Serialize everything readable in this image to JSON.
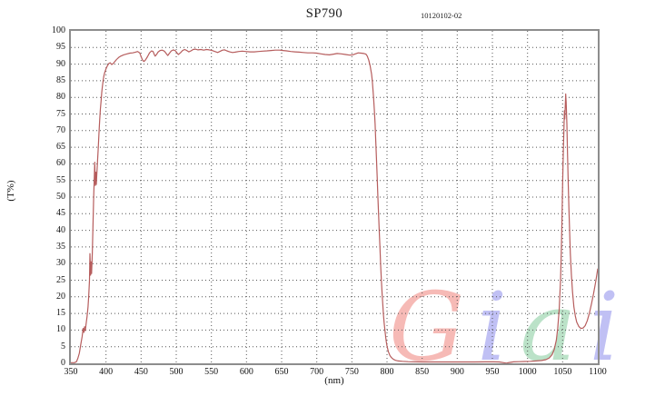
{
  "header": {
    "title": "SP790",
    "doc_number": "10120102-02"
  },
  "chart_data": {
    "type": "line",
    "title": "SP790",
    "xlabel": "(nm)",
    "ylabel": "(T%)",
    "xlim": [
      350,
      1100
    ],
    "ylim": [
      0,
      100
    ],
    "x_ticks": [
      350,
      400,
      450,
      500,
      550,
      600,
      650,
      700,
      750,
      800,
      850,
      900,
      950,
      1000,
      1050,
      1100
    ],
    "y_ticks": [
      0,
      5,
      10,
      15,
      20,
      25,
      30,
      35,
      40,
      45,
      50,
      55,
      60,
      65,
      70,
      75,
      80,
      85,
      90,
      95,
      100
    ],
    "grid": "dotted",
    "grid_color": "#555555",
    "frame_color": "#8d8d8d",
    "legend": "none",
    "series": [
      {
        "name": "SP790 transmission",
        "color": "#b65d5d",
        "points": [
          [
            350,
            0.2
          ],
          [
            355,
            0.2
          ],
          [
            358,
            0.5
          ],
          [
            360,
            1.5
          ],
          [
            362,
            3
          ],
          [
            364,
            5.5
          ],
          [
            366,
            8
          ],
          [
            367.5,
            10.5
          ],
          [
            368.5,
            9.3
          ],
          [
            369.5,
            11
          ],
          [
            370.5,
            9.8
          ],
          [
            371.5,
            11.5
          ],
          [
            373,
            14
          ],
          [
            374.5,
            17
          ],
          [
            375.5,
            20.5
          ],
          [
            376.5,
            25
          ],
          [
            377.2,
            33
          ],
          [
            378,
            26.5
          ],
          [
            378.8,
            30.5
          ],
          [
            379.5,
            27
          ],
          [
            380.5,
            33
          ],
          [
            381.5,
            42
          ],
          [
            382.5,
            50
          ],
          [
            383.2,
            55
          ],
          [
            384,
            60.5
          ],
          [
            384.8,
            53.5
          ],
          [
            385.5,
            57.5
          ],
          [
            386.2,
            53.8
          ],
          [
            387,
            57
          ],
          [
            388,
            61
          ],
          [
            389,
            65
          ],
          [
            390,
            69
          ],
          [
            391,
            73
          ],
          [
            392,
            76.5
          ],
          [
            393,
            79
          ],
          [
            394,
            81.5
          ],
          [
            395,
            83.5
          ],
          [
            396,
            85.2
          ],
          [
            397,
            86.4
          ],
          [
            398,
            87.3
          ],
          [
            400,
            88.6
          ],
          [
            402,
            89.5
          ],
          [
            404,
            90.2
          ],
          [
            406,
            90.4
          ],
          [
            408,
            89.9
          ],
          [
            410,
            90.1
          ],
          [
            412,
            90.6
          ],
          [
            415,
            91.4
          ],
          [
            418,
            92
          ],
          [
            421,
            92.4
          ],
          [
            425,
            92.8
          ],
          [
            430,
            93.1
          ],
          [
            434,
            93.3
          ],
          [
            438,
            93.4
          ],
          [
            442,
            93.6
          ],
          [
            445,
            93.8
          ],
          [
            448,
            93.4
          ],
          [
            450,
            92.3
          ],
          [
            452,
            91.2
          ],
          [
            454,
            90.8
          ],
          [
            456,
            91.2
          ],
          [
            459,
            92.2
          ],
          [
            462,
            93.4
          ],
          [
            465,
            94
          ],
          [
            467,
            93.8
          ],
          [
            469,
            92.8
          ],
          [
            470,
            92.4
          ],
          [
            472,
            92.9
          ],
          [
            474,
            93.6
          ],
          [
            477,
            94.1
          ],
          [
            480,
            94.2
          ],
          [
            483,
            93.9
          ],
          [
            486,
            93.1
          ],
          [
            488,
            92.6
          ],
          [
            490,
            93.2
          ],
          [
            493,
            94
          ],
          [
            496,
            94.3
          ],
          [
            499,
            94
          ],
          [
            501,
            93.4
          ],
          [
            503,
            92.9
          ],
          [
            506,
            93.4
          ],
          [
            509,
            94.1
          ],
          [
            512,
            94.4
          ],
          [
            515,
            94.1
          ],
          [
            518,
            93.7
          ],
          [
            521,
            94
          ],
          [
            524,
            94.4
          ],
          [
            527,
            94.5
          ],
          [
            531,
            94.3
          ],
          [
            535,
            94.4
          ],
          [
            539,
            94.2
          ],
          [
            543,
            94.4
          ],
          [
            547,
            94.3
          ],
          [
            551,
            94.1
          ],
          [
            555,
            93.8
          ],
          [
            559,
            93.5
          ],
          [
            562,
            93.8
          ],
          [
            566,
            94.2
          ],
          [
            569,
            94.3
          ],
          [
            572,
            94
          ],
          [
            576,
            93.7
          ],
          [
            580,
            93.5
          ],
          [
            584,
            93.6
          ],
          [
            589,
            93.8
          ],
          [
            594,
            93.9
          ],
          [
            599,
            93.8
          ],
          [
            605,
            93.7
          ],
          [
            611,
            93.7
          ],
          [
            617,
            93.8
          ],
          [
            623,
            93.9
          ],
          [
            629,
            94
          ],
          [
            635,
            94.1
          ],
          [
            641,
            94.2
          ],
          [
            647,
            94.2
          ],
          [
            652,
            94.1
          ],
          [
            657,
            94
          ],
          [
            663,
            93.8
          ],
          [
            669,
            93.7
          ],
          [
            675,
            93.6
          ],
          [
            681,
            93.5
          ],
          [
            687,
            93.4
          ],
          [
            694,
            93.4
          ],
          [
            700,
            93.3
          ],
          [
            706,
            93.1
          ],
          [
            712,
            92.9
          ],
          [
            718,
            92.8
          ],
          [
            724,
            93
          ],
          [
            729,
            93.2
          ],
          [
            735,
            93.1
          ],
          [
            741,
            92.9
          ],
          [
            747,
            92.7
          ],
          [
            751,
            92.8
          ],
          [
            755,
            93.1
          ],
          [
            759,
            93.4
          ],
          [
            763,
            93.3
          ],
          [
            767,
            93.2
          ],
          [
            770,
            93
          ],
          [
            772,
            92.4
          ],
          [
            774,
            91.2
          ],
          [
            776,
            89.5
          ],
          [
            778,
            87
          ],
          [
            779,
            85
          ],
          [
            780,
            82.5
          ],
          [
            781,
            79.5
          ],
          [
            782,
            76
          ],
          [
            783,
            72
          ],
          [
            784,
            67
          ],
          [
            785,
            61.5
          ],
          [
            786,
            56
          ],
          [
            787,
            50.5
          ],
          [
            788,
            45
          ],
          [
            789,
            39.5
          ],
          [
            790,
            34.5
          ],
          [
            791,
            29.5
          ],
          [
            792,
            25
          ],
          [
            793,
            21
          ],
          [
            794,
            17.5
          ],
          [
            795,
            14.5
          ],
          [
            796,
            12
          ],
          [
            797,
            10
          ],
          [
            798,
            8
          ],
          [
            799,
            6.5
          ],
          [
            800,
            5.2
          ],
          [
            802,
            3.5
          ],
          [
            804,
            2.4
          ],
          [
            806,
            1.8
          ],
          [
            809,
            1.2
          ],
          [
            812,
            0.9
          ],
          [
            816,
            0.7
          ],
          [
            822,
            0.6
          ],
          [
            830,
            0.5
          ],
          [
            840,
            0.45
          ],
          [
            852,
            0.4
          ],
          [
            865,
            0.4
          ],
          [
            880,
            0.4
          ],
          [
            895,
            0.4
          ],
          [
            910,
            0.4
          ],
          [
            925,
            0.42
          ],
          [
            940,
            0.45
          ],
          [
            952,
            0.45
          ],
          [
            960,
            0.4
          ],
          [
            966,
            0.2
          ],
          [
            970,
            0.05
          ],
          [
            974,
            0.25
          ],
          [
            980,
            0.45
          ],
          [
            988,
            0.5
          ],
          [
            996,
            0.55
          ],
          [
            1004,
            0.6
          ],
          [
            1012,
            0.7
          ],
          [
            1020,
            0.85
          ],
          [
            1026,
            1.1
          ],
          [
            1031,
            1.6
          ],
          [
            1035,
            2.6
          ],
          [
            1038,
            4.2
          ],
          [
            1041,
            7
          ],
          [
            1043,
            10.5
          ],
          [
            1045,
            16
          ],
          [
            1047,
            25
          ],
          [
            1048,
            33
          ],
          [
            1049,
            43
          ],
          [
            1050,
            54
          ],
          [
            1051,
            64
          ],
          [
            1052,
            72
          ],
          [
            1052.6,
            76
          ],
          [
            1053,
            73.5
          ],
          [
            1053.6,
            76.5
          ],
          [
            1054.3,
            81
          ],
          [
            1055,
            78.5
          ],
          [
            1056,
            72
          ],
          [
            1057,
            63
          ],
          [
            1058,
            54
          ],
          [
            1059,
            46
          ],
          [
            1060,
            39
          ],
          [
            1061,
            33
          ],
          [
            1062.5,
            26.5
          ],
          [
            1064,
            21.5
          ],
          [
            1066,
            17
          ],
          [
            1068,
            14.2
          ],
          [
            1070,
            12.4
          ],
          [
            1073,
            11.1
          ],
          [
            1076,
            10.5
          ],
          [
            1079,
            10.6
          ],
          [
            1082,
            11.3
          ],
          [
            1085,
            12.8
          ],
          [
            1088,
            15
          ],
          [
            1091,
            17.8
          ],
          [
            1094,
            21
          ],
          [
            1097,
            24.5
          ],
          [
            1100,
            28.5
          ]
        ]
      }
    ]
  },
  "watermark": {
    "text": "Giai",
    "letters": [
      {
        "char": "G",
        "color": "#f2918b"
      },
      {
        "char": "i",
        "color": "#9a9aee"
      },
      {
        "char": "a",
        "color": "#92d1a8"
      },
      {
        "char": "i",
        "color": "#9a9aee"
      }
    ]
  }
}
